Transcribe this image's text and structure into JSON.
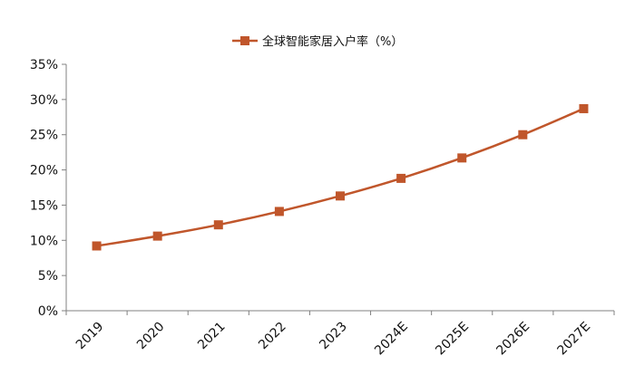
{
  "chart_data": {
    "type": "line",
    "title": "",
    "xlabel": "",
    "ylabel": "",
    "categories": [
      "2019",
      "2020",
      "2021",
      "2022",
      "2023",
      "2024E",
      "2025E",
      "2026E",
      "2027E"
    ],
    "series": [
      {
        "name": "全球智能家居入户率（%）",
        "values": [
          9.2,
          10.6,
          12.2,
          14.1,
          16.3,
          18.8,
          21.7,
          25.0,
          28.7
        ],
        "color": "#c0562b",
        "marker": "square"
      }
    ],
    "ylim": [
      0,
      35
    ],
    "yticks": [
      "0%",
      "5%",
      "10%",
      "15%",
      "20%",
      "25%",
      "30%",
      "35%"
    ],
    "ytick_values": [
      0,
      5,
      10,
      15,
      20,
      25,
      30,
      35
    ],
    "grid": false,
    "legend": "top-center",
    "axis_color": "#808080"
  }
}
